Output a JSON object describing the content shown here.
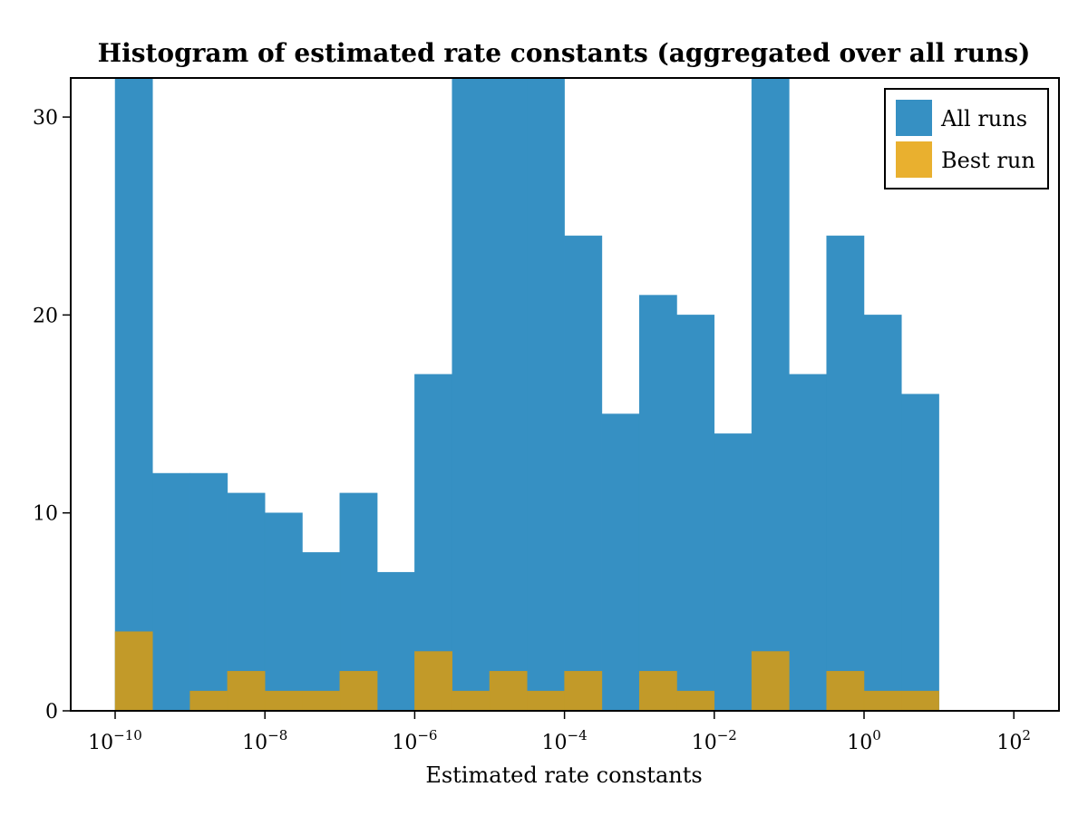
{
  "chart_data": {
    "type": "bar",
    "title": "Histogram of estimated rate constants (aggregated over all runs)",
    "xlabel": "Estimated rate constants",
    "ylabel": "",
    "x_scale": "log10",
    "x_tick_exponents": [
      -10,
      -8,
      -6,
      -4,
      -2,
      0,
      2
    ],
    "y_ticks": [
      0,
      10,
      20,
      30
    ],
    "ylim": [
      0,
      30
    ],
    "bins_log10": [
      [
        -10.0,
        -9.5
      ],
      [
        -9.5,
        -9.0
      ],
      [
        -9.0,
        -8.5
      ],
      [
        -8.5,
        -8.0
      ],
      [
        -8.0,
        -7.5
      ],
      [
        -7.5,
        -7.0
      ],
      [
        -7.0,
        -6.5
      ],
      [
        -6.5,
        -6.0
      ],
      [
        -6.0,
        -5.5
      ],
      [
        -5.5,
        -5.0
      ],
      [
        -5.0,
        -4.5
      ],
      [
        -4.5,
        -4.0
      ],
      [
        -4.0,
        -3.5
      ],
      [
        -3.5,
        -3.0
      ],
      [
        -3.0,
        -2.5
      ],
      [
        -2.5,
        -2.0
      ],
      [
        -2.0,
        -1.5
      ],
      [
        -1.5,
        -1.0
      ],
      [
        -1.0,
        -0.5
      ],
      [
        -0.5,
        0.0
      ],
      [
        0.0,
        0.5
      ],
      [
        0.5,
        1.0
      ]
    ],
    "series": [
      {
        "name": "All runs",
        "color": "#3690c3",
        "values": [
          32,
          12,
          12,
          11,
          10,
          8,
          11,
          7,
          17,
          32,
          32,
          32,
          24,
          15,
          21,
          20,
          14,
          32,
          17,
          24,
          20,
          16
        ]
      },
      {
        "name": "Best run",
        "color": "#c29a29",
        "legend_color": "#e9b02f",
        "values": [
          4,
          0,
          1,
          2,
          1,
          1,
          2,
          0,
          3,
          1,
          2,
          1,
          2,
          0,
          2,
          1,
          0,
          3,
          0,
          2,
          1,
          1
        ]
      }
    ],
    "legend_position": "top-right",
    "grid": false
  }
}
